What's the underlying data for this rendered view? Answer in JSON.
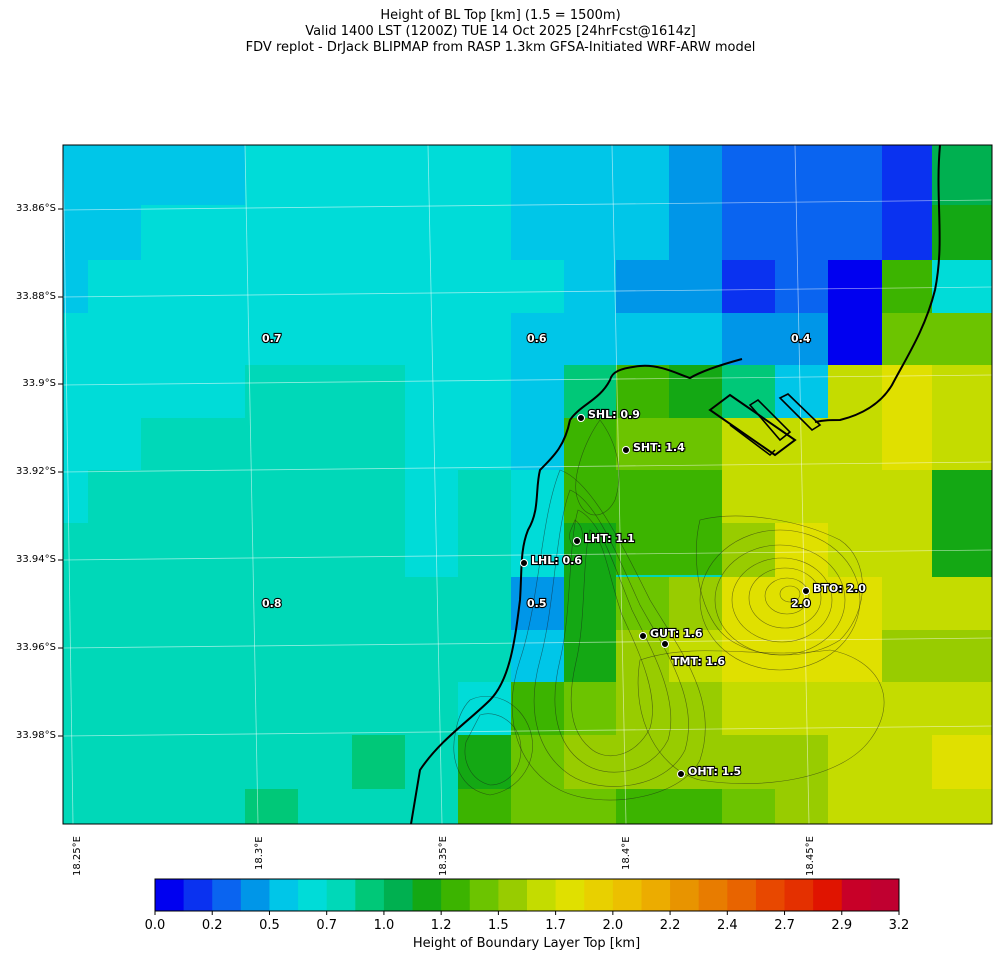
{
  "title": {
    "line1": "Height of BL Top [km] (1.5 = 1500m)",
    "line2": "Valid 1400 LST (1200Z) TUE 14 Oct 2025 [24hrFcst@1614z]",
    "line3": "FDV replot - DrJack BLIPMAP from RASP 1.3km GFSA-Initiated WRF-ARW model"
  },
  "lat_labels": [
    "33.86°S",
    "33.88°S",
    "33.9°S",
    "33.92°S",
    "33.94°S",
    "33.96°S",
    "33.98°S"
  ],
  "lon_labels": [
    "18.25°E",
    "18.3°E",
    "18.35°E",
    "18.4°E",
    "18.45°E"
  ],
  "colorbar": {
    "title": "Height of Boundary Layer Top [km]",
    "ticks": [
      "0.0",
      "0.2",
      "0.5",
      "0.7",
      "1.0",
      "1.2",
      "1.5",
      "1.7",
      "2.0",
      "2.2",
      "2.4",
      "2.7",
      "2.9",
      "3.2"
    ],
    "colors": [
      "#0000f0",
      "#0a32f0",
      "#0a64f0",
      "#0096e8",
      "#00c6e8",
      "#00dcd8",
      "#00d8b8",
      "#00c878",
      "#00b050",
      "#14a814",
      "#3cb400",
      "#6cc400",
      "#98cc00",
      "#c4dc00",
      "#e0e000",
      "#e8d000",
      "#ecc000",
      "#ecac00",
      "#e89400",
      "#e87c00",
      "#e86400",
      "#e84800",
      "#e43000",
      "#e01400",
      "#c80028",
      "#c00030"
    ]
  },
  "grid_labels": [
    {
      "text": "0.7"
    },
    {
      "text": "0.6"
    },
    {
      "text": "0.4"
    },
    {
      "text": "0.8"
    },
    {
      "text": "0.5"
    },
    {
      "text": "2.0"
    }
  ],
  "sites": [
    {
      "label": "SHL: 0.9"
    },
    {
      "label": "SHT: 1.4"
    },
    {
      "label": "LHT: 1.1"
    },
    {
      "label": "LHL: 0.6"
    },
    {
      "label": "BTO: 2.0"
    },
    {
      "label": "GUT: 1.6"
    },
    {
      "label": "TMT: 1.6"
    },
    {
      "label": "OHT: 1.5"
    }
  ]
}
